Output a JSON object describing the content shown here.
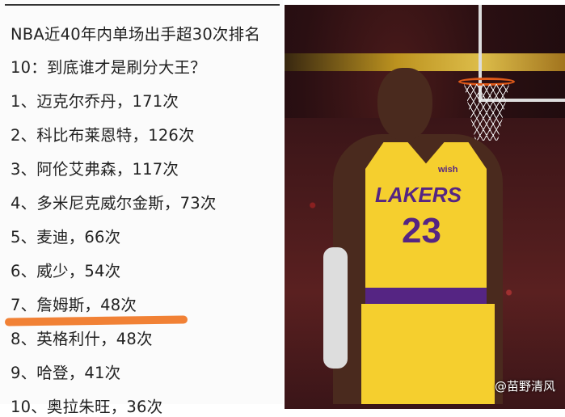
{
  "text_panel": {
    "title_line1": "NBA近40年内单场出手超30次排名",
    "title_line2": "10：到底谁才是刷分大王？",
    "ranking": [
      "1、迈克尔乔丹，171次",
      "2、科比布莱恩特，126次",
      "3、阿伦艾弗森，117次",
      "4、多米尼克威尔金斯，73次",
      "5、麦迪，66次",
      "6、威少，54次",
      "7、詹姆斯，48次",
      "8、英格利什，48次",
      "9、哈登，41次",
      "10、奥拉朱旺，36次"
    ],
    "highlight_color": "#f07a2a"
  },
  "photo": {
    "team": "LAKERS",
    "number": "23",
    "sponsor": "wish",
    "watermark": "@苗野清风"
  }
}
